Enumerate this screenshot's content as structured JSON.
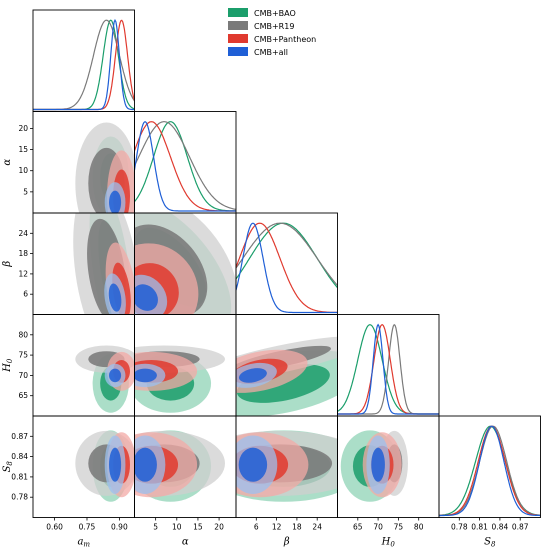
{
  "chart_data": {
    "type": "corner",
    "params": [
      {
        "key": "am",
        "label": "a",
        "sub": "m",
        "range": [
          0.5,
          0.97
        ],
        "ticks": [
          0.6,
          0.75,
          0.9
        ],
        "tick_labels": [
          "0.60",
          "0.75",
          "0.90"
        ]
      },
      {
        "key": "alpha",
        "label": "α",
        "sub": "",
        "range": [
          0,
          24
        ],
        "ticks": [
          5,
          10,
          15,
          20
        ],
        "tick_labels": [
          "5",
          "10",
          "15",
          "20"
        ]
      },
      {
        "key": "beta",
        "label": "β",
        "sub": "",
        "range": [
          0,
          30
        ],
        "ticks": [
          6,
          12,
          18,
          24
        ],
        "tick_labels": [
          "6",
          "12",
          "18",
          "24"
        ]
      },
      {
        "key": "H0",
        "label": "H",
        "sub": "0",
        "range": [
          60,
          85
        ],
        "ticks": [
          65,
          70,
          75,
          80
        ],
        "tick_labels": [
          "65",
          "70",
          "75",
          "80"
        ]
      },
      {
        "key": "S8",
        "label": "S",
        "sub": "8",
        "range": [
          0.75,
          0.9
        ],
        "ticks": [
          0.78,
          0.81,
          0.84,
          0.87
        ],
        "tick_labels": [
          "0.78",
          "0.81",
          "0.84",
          "0.87"
        ]
      }
    ],
    "legend": {
      "position": "top-right"
    },
    "series": [
      {
        "name": "CMB+BAO",
        "color": "#1b9e6b",
        "fill_light": "#8fd3b5",
        "fill_dark": "#1b9e6b",
        "mean": {
          "am": 0.86,
          "alpha": 8.5,
          "beta": 14,
          "H0": 68.0,
          "S8": 0.826
        },
        "sd": {
          "am": 0.035,
          "alpha": 4.0,
          "beta": 10,
          "H0": 3.0,
          "S8": 0.022
        }
      },
      {
        "name": "CMB+R19",
        "color": "#7a7a7a",
        "fill_light": "#cfcfcf",
        "fill_dark": "#777777",
        "mean": {
          "am": 0.84,
          "alpha": 7.0,
          "beta": 13,
          "H0": 74.0,
          "S8": 0.83
        },
        "sd": {
          "am": 0.06,
          "alpha": 6.0,
          "beta": 11,
          "H0": 1.4,
          "S8": 0.02
        }
      },
      {
        "name": "CMB+Pantheon",
        "color": "#e03a2f",
        "fill_light": "#f3aaa5",
        "fill_dark": "#e03a2f",
        "mean": {
          "am": 0.91,
          "alpha": 4.0,
          "beta": 7,
          "H0": 71.0,
          "S8": 0.828
        },
        "sd": {
          "am": 0.028,
          "alpha": 4.5,
          "beta": 6,
          "H0": 2.0,
          "S8": 0.02
        }
      },
      {
        "name": "CMB+all",
        "color": "#1f5fd6",
        "fill_light": "#9cc0ef",
        "fill_dark": "#1f5fd6",
        "mean": {
          "am": 0.88,
          "alpha": 2.5,
          "beta": 5,
          "H0": 70.0,
          "S8": 0.828
        },
        "sd": {
          "am": 0.02,
          "alpha": 2.0,
          "beta": 3,
          "H0": 1.2,
          "S8": 0.018
        }
      }
    ]
  }
}
